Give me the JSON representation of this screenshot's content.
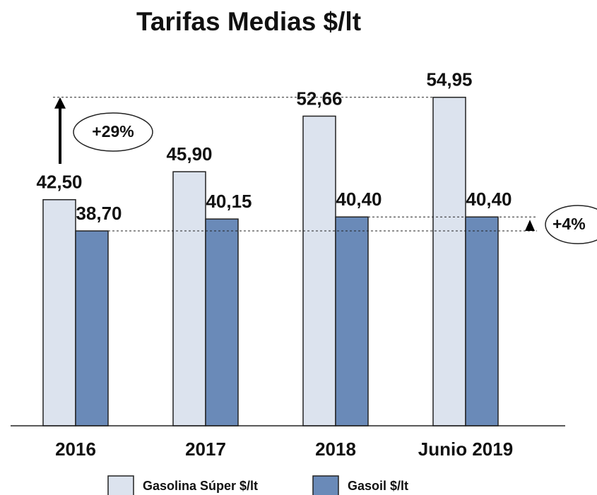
{
  "chart_data": {
    "type": "bar",
    "title": "Tarifas Medias $/lt",
    "categories": [
      "2016",
      "2017",
      "2018",
      "Junio 2019"
    ],
    "series": [
      {
        "name": "Gasolina Súper $/lt",
        "color": "#dce3ee",
        "values": [
          42.5,
          45.9,
          52.66,
          54.95
        ],
        "value_labels": [
          "42,50",
          "45,90",
          "52,66",
          "54,95"
        ]
      },
      {
        "name": "Gasoil $/lt",
        "color": "#6a8ab8",
        "values": [
          38.7,
          40.15,
          40.4,
          40.4
        ],
        "value_labels": [
          "38,70",
          "40,15",
          "40,40",
          "40,40"
        ]
      }
    ],
    "ylim": [
      15,
      60
    ],
    "annotations": [
      "+29%",
      "+4%"
    ]
  }
}
